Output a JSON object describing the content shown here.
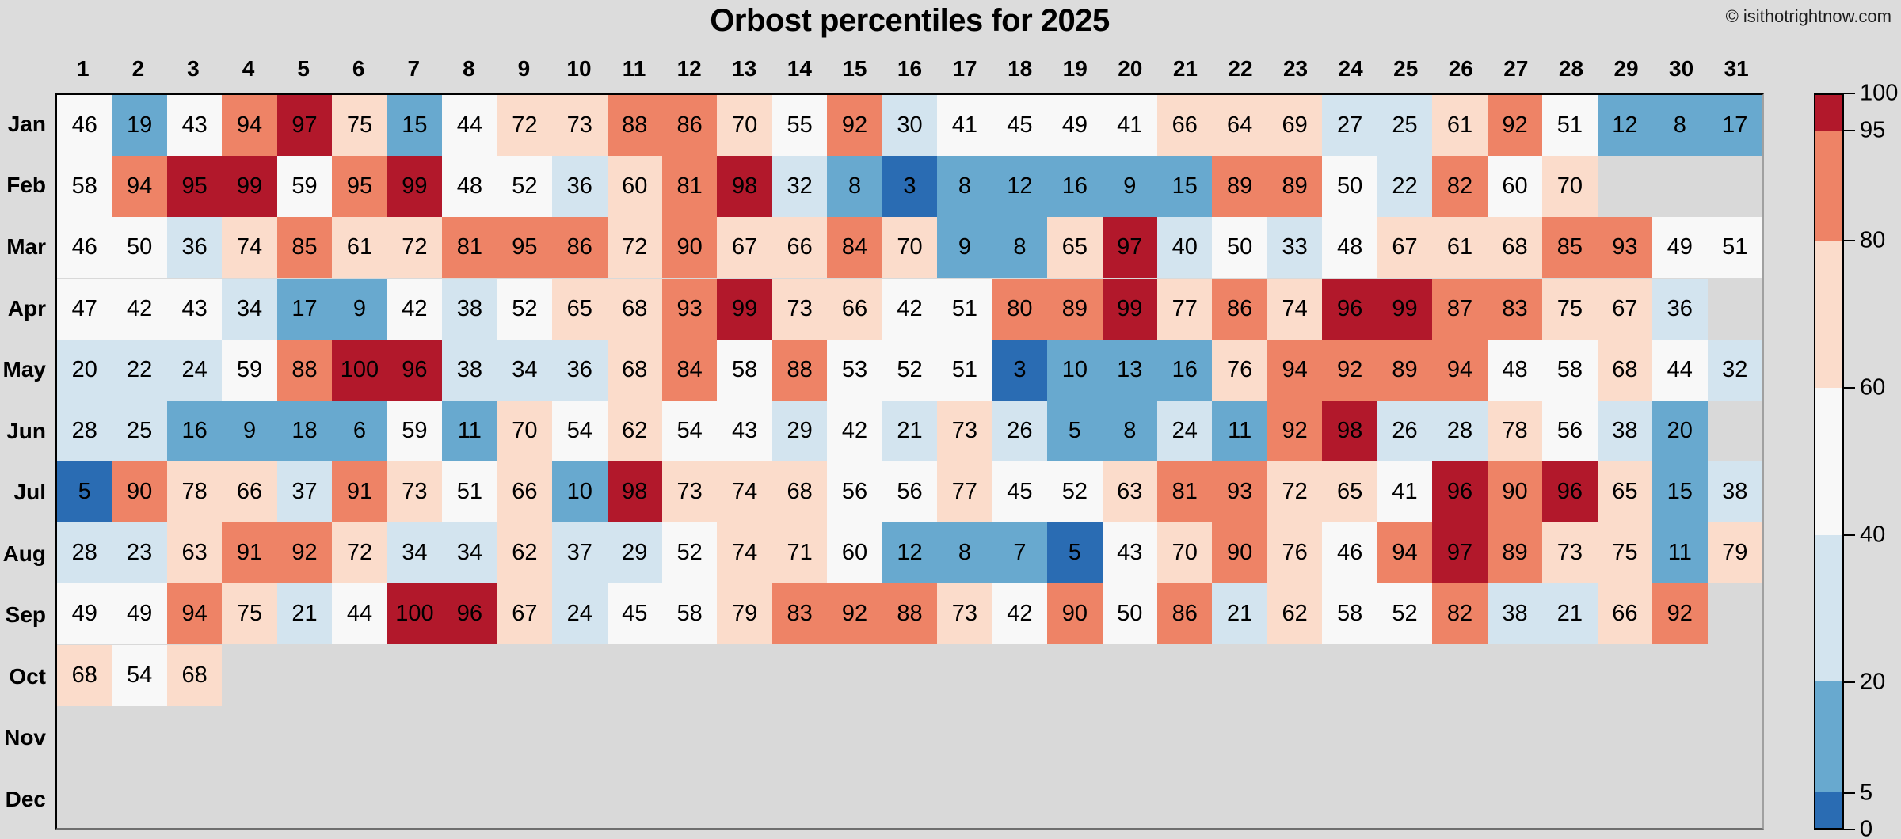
{
  "title": "Orbost percentiles for 2025",
  "copyright": "© isithotrightnow.com",
  "background_color": "#dcdcdc",
  "plot_background_color": "#d9d9d9",
  "chart_data": {
    "type": "heatmap",
    "title": "Orbost percentiles for 2025",
    "xlabel": "",
    "ylabel": "",
    "x_labels": [
      "1",
      "2",
      "3",
      "4",
      "5",
      "6",
      "7",
      "8",
      "9",
      "10",
      "11",
      "12",
      "13",
      "14",
      "15",
      "16",
      "17",
      "18",
      "19",
      "20",
      "21",
      "22",
      "23",
      "24",
      "25",
      "26",
      "27",
      "28",
      "29",
      "30",
      "31"
    ],
    "y_labels": [
      "Jan",
      "Feb",
      "Mar",
      "Apr",
      "May",
      "Jun",
      "Jul",
      "Aug",
      "Sep",
      "Oct",
      "Nov",
      "Dec"
    ],
    "values": {
      "Jan": [
        46,
        19,
        43,
        94,
        97,
        75,
        15,
        44,
        72,
        73,
        88,
        86,
        70,
        55,
        92,
        30,
        41,
        45,
        49,
        41,
        66,
        64,
        69,
        27,
        25,
        61,
        92,
        51,
        12,
        8,
        17
      ],
      "Feb": [
        58,
        94,
        95,
        99,
        59,
        95,
        99,
        48,
        52,
        36,
        60,
        81,
        98,
        32,
        8,
        3,
        8,
        12,
        16,
        9,
        15,
        89,
        89,
        50,
        22,
        82,
        60,
        70
      ],
      "Mar": [
        46,
        50,
        36,
        74,
        85,
        61,
        72,
        81,
        95,
        86,
        72,
        90,
        67,
        66,
        84,
        70,
        9,
        8,
        65,
        97,
        40,
        50,
        33,
        48,
        67,
        61,
        68,
        85,
        93,
        49,
        51
      ],
      "Apr": [
        47,
        42,
        43,
        34,
        17,
        9,
        42,
        38,
        52,
        65,
        68,
        93,
        99,
        73,
        66,
        42,
        51,
        80,
        89,
        99,
        77,
        86,
        74,
        96,
        99,
        87,
        83,
        75,
        67,
        36
      ],
      "May": [
        20,
        22,
        24,
        59,
        88,
        100,
        96,
        38,
        34,
        36,
        68,
        84,
        58,
        88,
        53,
        52,
        51,
        3,
        10,
        13,
        16,
        76,
        94,
        92,
        89,
        94,
        48,
        58,
        68,
        44,
        32
      ],
      "Jun": [
        28,
        25,
        16,
        9,
        18,
        6,
        59,
        11,
        70,
        54,
        62,
        54,
        43,
        29,
        42,
        21,
        73,
        26,
        5,
        8,
        24,
        11,
        92,
        98,
        26,
        28,
        78,
        56,
        38,
        20
      ],
      "Jul": [
        5,
        90,
        78,
        66,
        37,
        91,
        73,
        51,
        66,
        10,
        98,
        73,
        74,
        68,
        56,
        56,
        77,
        45,
        52,
        63,
        81,
        93,
        72,
        65,
        41,
        96,
        90,
        96,
        65,
        15,
        38
      ],
      "Aug": [
        28,
        23,
        63,
        91,
        92,
        72,
        34,
        34,
        62,
        37,
        29,
        52,
        74,
        71,
        60,
        12,
        8,
        7,
        5,
        43,
        70,
        90,
        76,
        46,
        94,
        97,
        89,
        73,
        75,
        11,
        79
      ],
      "Sep": [
        49,
        49,
        94,
        75,
        21,
        44,
        100,
        96,
        67,
        24,
        45,
        58,
        79,
        83,
        92,
        88,
        73,
        42,
        90,
        50,
        86,
        21,
        62,
        58,
        52,
        82,
        38,
        21,
        66,
        92
      ],
      "Oct": [
        68,
        54,
        68
      ],
      "Nov": [],
      "Dec": []
    },
    "palette": {
      "darkred": "#b2182b",
      "orange": "#ee8366",
      "peach": "#fbdccb",
      "white": "#f8f8f8",
      "lightblue": "#d3e4ef",
      "midblue": "#68a9cf",
      "darkblue": "#2a6cb3"
    },
    "bin_rule": [
      {
        "min": 95,
        "color": "darkred"
      },
      {
        "min": 80,
        "color": "orange"
      },
      {
        "min": 60,
        "color": "peach"
      },
      {
        "min": 40,
        "color": "white"
      },
      {
        "min": 20,
        "color": "lightblue"
      },
      {
        "min": 6,
        "color": "midblue"
      },
      {
        "min": 0,
        "color": "darkblue"
      }
    ],
    "cell_color_overrides": {
      "Feb-6": "orange",
      "Feb-27": "white",
      "Mar-9": "orange",
      "Mar-21": "lightblue",
      "Jun-19": "midblue",
      "Jun-30": "midblue",
      "Aug-15": "white"
    },
    "colorbar": {
      "position": "right",
      "ticks": [
        0,
        5,
        20,
        40,
        60,
        80,
        95,
        100
      ],
      "range": [
        0,
        100
      ],
      "segments": [
        {
          "from": 0,
          "to": 5,
          "color": "darkblue"
        },
        {
          "from": 5,
          "to": 20,
          "color": "midblue"
        },
        {
          "from": 20,
          "to": 40,
          "color": "lightblue"
        },
        {
          "from": 40,
          "to": 60,
          "color": "white"
        },
        {
          "from": 60,
          "to": 80,
          "color": "peach"
        },
        {
          "from": 80,
          "to": 95,
          "color": "orange"
        },
        {
          "from": 95,
          "to": 100,
          "color": "darkred"
        }
      ]
    },
    "grid": false,
    "legend_position": "none"
  }
}
